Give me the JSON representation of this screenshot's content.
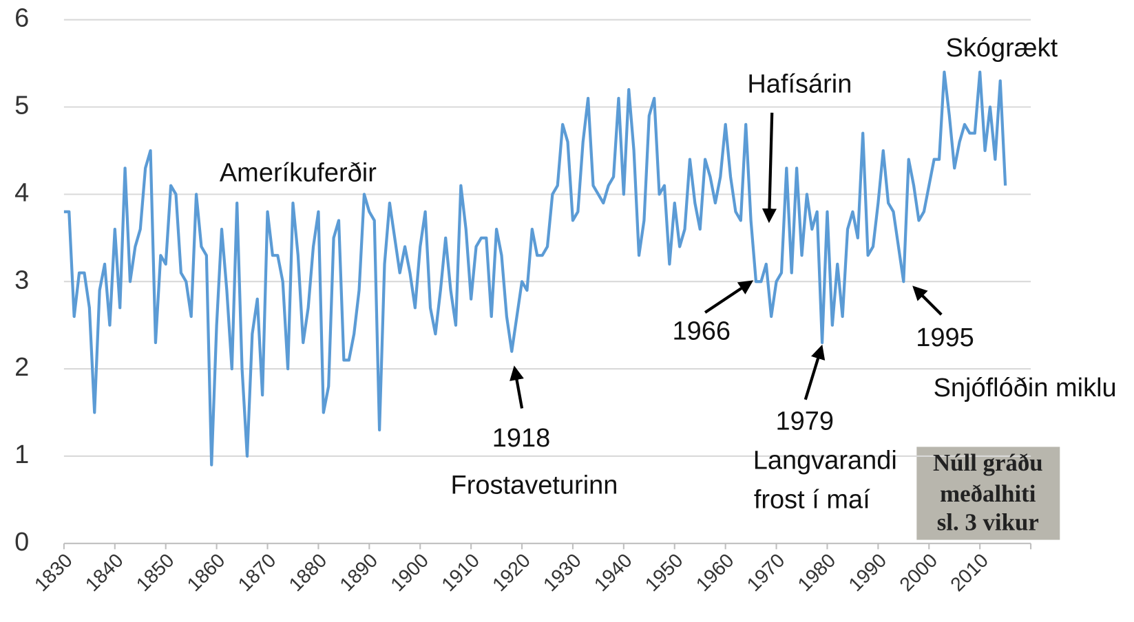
{
  "chart_data": {
    "type": "line",
    "x": [
      1830,
      1831,
      1832,
      1833,
      1834,
      1835,
      1836,
      1837,
      1838,
      1839,
      1840,
      1841,
      1842,
      1843,
      1844,
      1845,
      1846,
      1847,
      1848,
      1849,
      1850,
      1851,
      1852,
      1853,
      1854,
      1855,
      1856,
      1857,
      1858,
      1859,
      1860,
      1861,
      1862,
      1863,
      1864,
      1865,
      1866,
      1867,
      1868,
      1869,
      1870,
      1871,
      1872,
      1873,
      1874,
      1875,
      1876,
      1877,
      1878,
      1879,
      1880,
      1881,
      1882,
      1883,
      1884,
      1885,
      1886,
      1887,
      1888,
      1889,
      1890,
      1891,
      1892,
      1893,
      1894,
      1895,
      1896,
      1897,
      1898,
      1899,
      1900,
      1901,
      1902,
      1903,
      1904,
      1905,
      1906,
      1907,
      1908,
      1909,
      1910,
      1911,
      1912,
      1913,
      1914,
      1915,
      1916,
      1917,
      1918,
      1919,
      1920,
      1921,
      1922,
      1923,
      1924,
      1925,
      1926,
      1927,
      1928,
      1929,
      1930,
      1931,
      1932,
      1933,
      1934,
      1935,
      1936,
      1937,
      1938,
      1939,
      1940,
      1941,
      1942,
      1943,
      1944,
      1945,
      1946,
      1947,
      1948,
      1949,
      1950,
      1951,
      1952,
      1953,
      1954,
      1955,
      1956,
      1957,
      1958,
      1959,
      1960,
      1961,
      1962,
      1963,
      1964,
      1965,
      1966,
      1967,
      1968,
      1969,
      1970,
      1971,
      1972,
      1973,
      1974,
      1975,
      1976,
      1977,
      1978,
      1979,
      1980,
      1981,
      1982,
      1983,
      1984,
      1985,
      1986,
      1987,
      1988,
      1989,
      1990,
      1991,
      1992,
      1993,
      1994,
      1995,
      1996,
      1997,
      1998,
      1999,
      2000,
      2001,
      2002,
      2003,
      2004,
      2005,
      2006,
      2007,
      2008,
      2009,
      2010,
      2011,
      2012,
      2013,
      2014,
      2015
    ],
    "series": [
      {
        "color": "#5b9bd5",
        "values": [
          3.8,
          3.8,
          2.6,
          3.1,
          3.1,
          2.7,
          1.5,
          2.9,
          3.2,
          2.5,
          3.6,
          2.7,
          4.3,
          3.0,
          3.4,
          3.6,
          4.3,
          4.5,
          2.3,
          3.3,
          3.2,
          4.1,
          4.0,
          3.1,
          3.0,
          2.6,
          4.0,
          3.4,
          3.3,
          0.9,
          2.5,
          3.6,
          2.9,
          2.0,
          3.9,
          2.0,
          1.0,
          2.4,
          2.8,
          1.7,
          3.8,
          3.3,
          3.3,
          3.0,
          2.0,
          3.9,
          3.3,
          2.3,
          2.7,
          3.4,
          3.8,
          1.5,
          1.8,
          3.5,
          3.7,
          2.1,
          2.1,
          2.4,
          2.9,
          4.0,
          3.8,
          3.7,
          1.3,
          3.2,
          3.9,
          3.5,
          3.1,
          3.4,
          3.1,
          2.7,
          3.4,
          3.8,
          2.7,
          2.4,
          2.9,
          3.5,
          2.9,
          2.5,
          4.1,
          3.6,
          2.8,
          3.4,
          3.5,
          3.5,
          2.6,
          3.6,
          3.3,
          2.6,
          2.2,
          2.6,
          3.0,
          2.9,
          3.6,
          3.3,
          3.3,
          3.4,
          4.0,
          4.1,
          4.8,
          4.6,
          3.7,
          3.8,
          4.6,
          5.1,
          4.1,
          4.0,
          3.9,
          4.1,
          4.2,
          5.1,
          4.0,
          5.2,
          4.5,
          3.3,
          3.7,
          4.9,
          5.1,
          4.0,
          4.1,
          3.2,
          3.9,
          3.4,
          3.6,
          4.4,
          3.9,
          3.6,
          4.4,
          4.2,
          3.9,
          4.2,
          4.8,
          4.2,
          3.8,
          3.7,
          4.8,
          3.7,
          3.0,
          3.0,
          3.2,
          2.6,
          3.0,
          3.1,
          4.3,
          3.1,
          4.3,
          3.3,
          4.0,
          3.6,
          3.8,
          2.3,
          3.8,
          2.5,
          3.2,
          2.6,
          3.6,
          3.8,
          3.5,
          4.7,
          3.3,
          3.4,
          3.9,
          4.5,
          3.9,
          3.8,
          3.4,
          3.0,
          4.4,
          4.1,
          3.7,
          3.8,
          4.1,
          4.4,
          4.4,
          5.4,
          4.9,
          4.3,
          4.6,
          4.8,
          4.7,
          4.7,
          5.4,
          4.5,
          5.0,
          4.4,
          5.3,
          4.1
        ]
      }
    ],
    "xlim": [
      1830,
      2020
    ],
    "xticks": [
      1830,
      1840,
      1850,
      1860,
      1870,
      1880,
      1890,
      1900,
      1910,
      1920,
      1930,
      1940,
      1950,
      1960,
      1970,
      1980,
      1990,
      2000,
      2010
    ],
    "ylim": [
      0,
      6
    ],
    "yticks": [
      0,
      1,
      2,
      3,
      4,
      5,
      6
    ],
    "grid": true,
    "annotations": [
      {
        "text": "Ameríkuferðir"
      },
      {
        "text": "1918"
      },
      {
        "text": "Frostaveturinn"
      },
      {
        "text": "Hafísárin"
      },
      {
        "text": "1966"
      },
      {
        "text": "1979"
      },
      {
        "text": "Langvarandi"
      },
      {
        "text": "frost í maí"
      },
      {
        "text": "1995"
      },
      {
        "text": "Snjóflóðin miklu"
      },
      {
        "text": "Skógrækt"
      }
    ],
    "clipping": [
      "Núll gráðu",
      "meðalhiti",
      "sl. 3 vikur"
    ]
  }
}
